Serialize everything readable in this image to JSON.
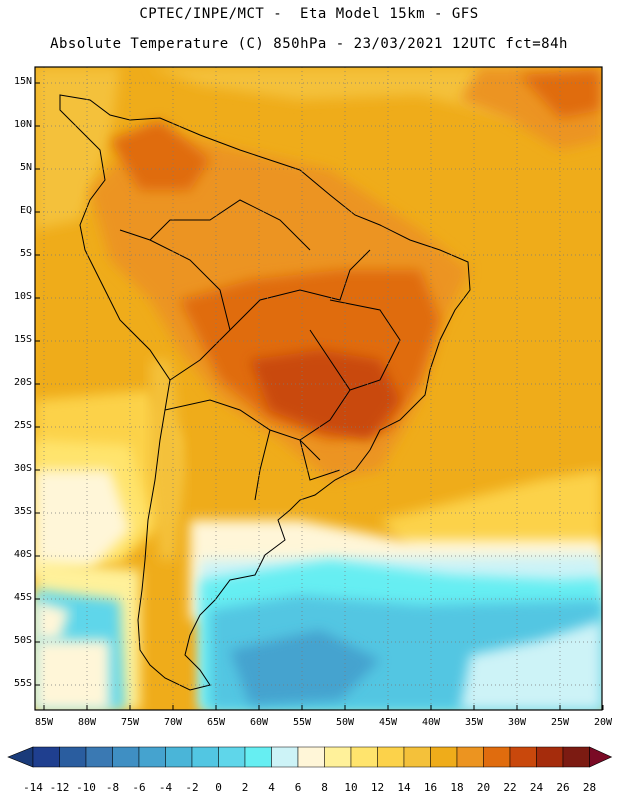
{
  "header": {
    "line1": "CPTEC/INPE/MCT -  Eta Model 15km - GFS",
    "line2": "Absolute Temperature (C) 850hPa - 23/03/2021 12UTC fct=84h"
  },
  "map": {
    "lat_labels": [
      "15N",
      "10N",
      "5N",
      "EQ",
      "5S",
      "10S",
      "15S",
      "20S",
      "25S",
      "30S",
      "35S",
      "40S",
      "45S",
      "50S",
      "55S"
    ],
    "lon_labels": [
      "85W",
      "80W",
      "75W",
      "70W",
      "65W",
      "60W",
      "55W",
      "50W",
      "45W",
      "40W",
      "35W",
      "30W",
      "25W",
      "20W"
    ],
    "extent": {
      "lon": [
        -85,
        -20
      ],
      "lat": [
        -58,
        16
      ]
    },
    "grid": "dotted"
  },
  "colorbar": {
    "labels": [
      "-14",
      "-12",
      "-10",
      "-8",
      "-6",
      "-4",
      "-2",
      "0",
      "2",
      "4",
      "6",
      "8",
      "10",
      "12",
      "14",
      "16",
      "18",
      "20",
      "22",
      "24",
      "26",
      "28"
    ],
    "colors": [
      "#1f3f8f",
      "#2a5d9f",
      "#3a79b3",
      "#3f8fc3",
      "#45a3cf",
      "#4ab5d8",
      "#52c6e2",
      "#5fd6ea",
      "#66eef2",
      "#cdf3f7",
      "#fff6d8",
      "#fff19a",
      "#ffe46d",
      "#fcd24a",
      "#f4c13a",
      "#efac1a",
      "#ec9420",
      "#e06c0e",
      "#c9480c",
      "#a52c0c",
      "#7c1b12"
    ],
    "lower_arrow_color": "#1a3b7a",
    "upper_arrow_color": "#7a0a25"
  }
}
